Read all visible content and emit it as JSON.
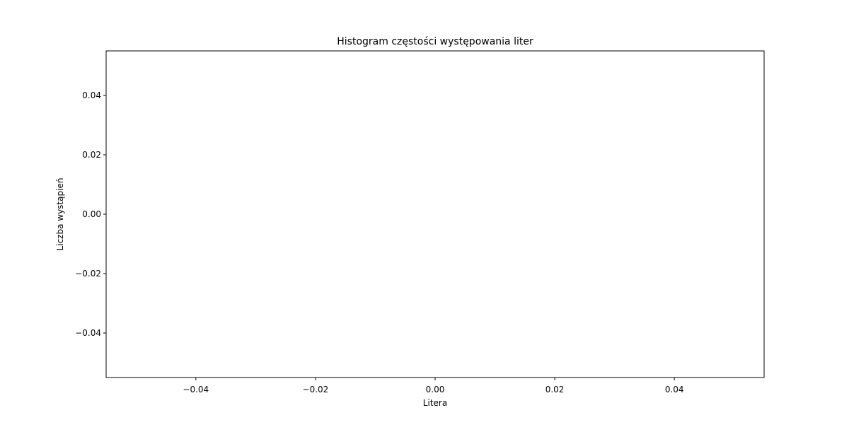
{
  "chart_data": {
    "type": "bar",
    "title": "Histogram częstości występowania liter",
    "xlabel": "Litera",
    "ylabel": "Liczba wystąpień",
    "categories": [],
    "values": [],
    "xlim": [
      -0.055,
      0.055
    ],
    "ylim": [
      -0.055,
      0.055
    ],
    "xticks": [
      "−0.04",
      "−0.02",
      "0.00",
      "0.02",
      "0.04"
    ],
    "xtick_values": [
      -0.04,
      -0.02,
      0.0,
      0.02,
      0.04
    ],
    "yticks": [
      "−0.04",
      "−0.02",
      "0.00",
      "0.02",
      "0.04"
    ],
    "ytick_values": [
      -0.04,
      -0.02,
      0.0,
      0.02,
      0.04
    ],
    "grid": false,
    "legend": "none",
    "colors": {
      "frame": "#000000",
      "background": "#ffffff"
    }
  }
}
